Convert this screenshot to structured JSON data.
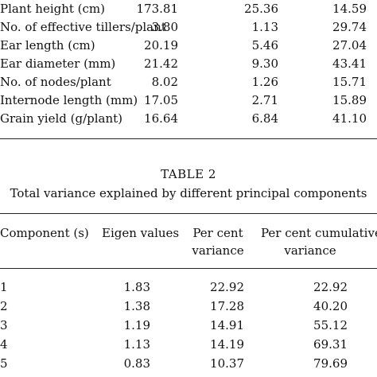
{
  "table1": {
    "rows": [
      {
        "label": "Plant height (cm)",
        "v1": "173.81",
        "v2": "25.36",
        "v3": "14.59"
      },
      {
        "label": "No. of effective tillers/plant",
        "v1": "3.80",
        "v2": "1.13",
        "v3": "29.74"
      },
      {
        "label": "Ear length (cm)",
        "v1": "20.19",
        "v2": "5.46",
        "v3": "27.04"
      },
      {
        "label": "Ear diameter (mm)",
        "v1": "21.42",
        "v2": "9.30",
        "v3": "43.41"
      },
      {
        "label": "No. of nodes/plant",
        "v1": "8.02",
        "v2": "1.26",
        "v3": "15.71"
      },
      {
        "label": "Internode length (mm)",
        "v1": "17.05",
        "v2": "2.71",
        "v3": "15.89"
      },
      {
        "label": "Grain yield (g/plant)",
        "v1": "16.64",
        "v2": "6.84",
        "v3": "41.10"
      }
    ]
  },
  "table2": {
    "title": "TABLE  2",
    "subtitle": "Total variance explained by different principal components",
    "headers": {
      "component": "Component  (s)",
      "eigen": "Eigen values",
      "percent_line1": "Per cent",
      "percent_line2": "variance",
      "cumulative_line1": "Per cent cumulative",
      "cumulative_line2": "variance"
    },
    "rows": [
      {
        "component": "1",
        "eigen": "1.83",
        "percent": "22.92",
        "cumulative": "22.92"
      },
      {
        "component": "2",
        "eigen": "1.38",
        "percent": "17.28",
        "cumulative": "40.20"
      },
      {
        "component": "3",
        "eigen": "1.19",
        "percent": "14.91",
        "cumulative": "55.12"
      },
      {
        "component": "4",
        "eigen": "1.13",
        "percent": "14.19",
        "cumulative": "69.31"
      },
      {
        "component": "5",
        "eigen": "0.83",
        "percent": "10.37",
        "cumulative": "79.69"
      }
    ]
  }
}
